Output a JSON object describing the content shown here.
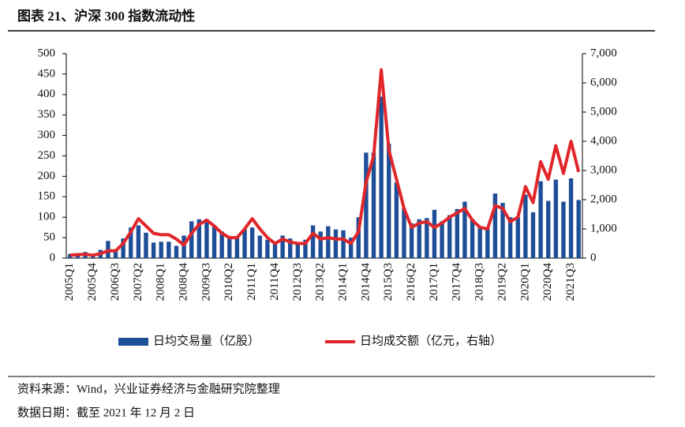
{
  "chart_data": {
    "type": "bar_line",
    "title": "图表 21、沪深 300 指数流动性",
    "source": "资料来源：Wind，兴业证券经济与金融研究院整理",
    "date_note": "数据日期：截至 2021 年 12 月 2 日",
    "categories": [
      "2005Q1",
      null,
      null,
      "2005Q4",
      null,
      null,
      "2006Q3",
      null,
      null,
      "2007Q2",
      null,
      null,
      "2008Q1",
      null,
      null,
      "2008Q4",
      null,
      null,
      "2009Q3",
      null,
      null,
      "2010Q2",
      null,
      null,
      "2011Q1",
      null,
      null,
      "2011Q4",
      null,
      null,
      "2012Q3",
      null,
      null,
      "2013Q2",
      null,
      null,
      "2014Q1",
      null,
      null,
      "2014Q4",
      null,
      null,
      "2015Q3",
      null,
      null,
      "2016Q2",
      null,
      null,
      "2017Q1",
      null,
      null,
      "2017Q4",
      null,
      null,
      "2018Q3",
      null,
      null,
      "2019Q2",
      null,
      null,
      "2020Q1",
      null,
      null,
      "2020Q4",
      null,
      null,
      "2021Q3",
      null
    ],
    "series": [
      {
        "name": "日均交易量（亿股）",
        "color": "#1f4e99",
        "kind": "bar",
        "values": [
          10,
          12,
          15,
          10,
          20,
          42,
          20,
          48,
          75,
          80,
          62,
          38,
          40,
          40,
          30,
          55,
          90,
          95,
          95,
          78,
          65,
          50,
          52,
          70,
          75,
          55,
          45,
          38,
          55,
          48,
          38,
          45,
          80,
          65,
          78,
          70,
          68,
          50,
          100,
          258,
          258,
          395,
          280,
          185,
          122,
          85,
          95,
          98,
          118,
          90,
          105,
          120,
          138,
          95,
          75,
          72,
          158,
          135,
          100,
          100,
          155,
          112,
          188,
          140,
          192,
          138,
          195,
          142
        ]
      },
      {
        "name": "日均成交额（亿元，右轴）",
        "color": "#e0262a",
        "kind": "line",
        "axis": "y2",
        "values": [
          100,
          120,
          130,
          100,
          150,
          250,
          250,
          500,
          900,
          1350,
          1100,
          850,
          800,
          800,
          650,
          450,
          850,
          1150,
          1300,
          1100,
          850,
          700,
          700,
          1000,
          1350,
          1000,
          700,
          500,
          650,
          550,
          500,
          500,
          850,
          650,
          700,
          650,
          650,
          500,
          900,
          2600,
          3500,
          6450,
          3700,
          2700,
          1700,
          1050,
          1200,
          1250,
          1050,
          1200,
          1400,
          1550,
          1700,
          1300,
          1050,
          1000,
          1800,
          1700,
          1250,
          1400,
          2450,
          1900,
          3300,
          2700,
          3850,
          2900,
          4000,
          2950
        ]
      }
    ],
    "ylim": [
      0,
      500
    ],
    "yticks": [
      0,
      50,
      100,
      150,
      200,
      250,
      300,
      350,
      400,
      450,
      500
    ],
    "y2lim": [
      0,
      7000
    ],
    "y2ticks": [
      0,
      {
        "value": 1000,
        "label": "1,000"
      },
      {
        "value": 2000,
        "label": "2,000"
      },
      {
        "value": 3000,
        "label": "3,000"
      },
      {
        "value": 4000,
        "label": "4,000"
      },
      {
        "value": 5000,
        "label": "5,000"
      },
      {
        "value": 6000,
        "label": "6,000"
      },
      {
        "value": 7000,
        "label": "7,000"
      }
    ],
    "legend": "bottom"
  }
}
